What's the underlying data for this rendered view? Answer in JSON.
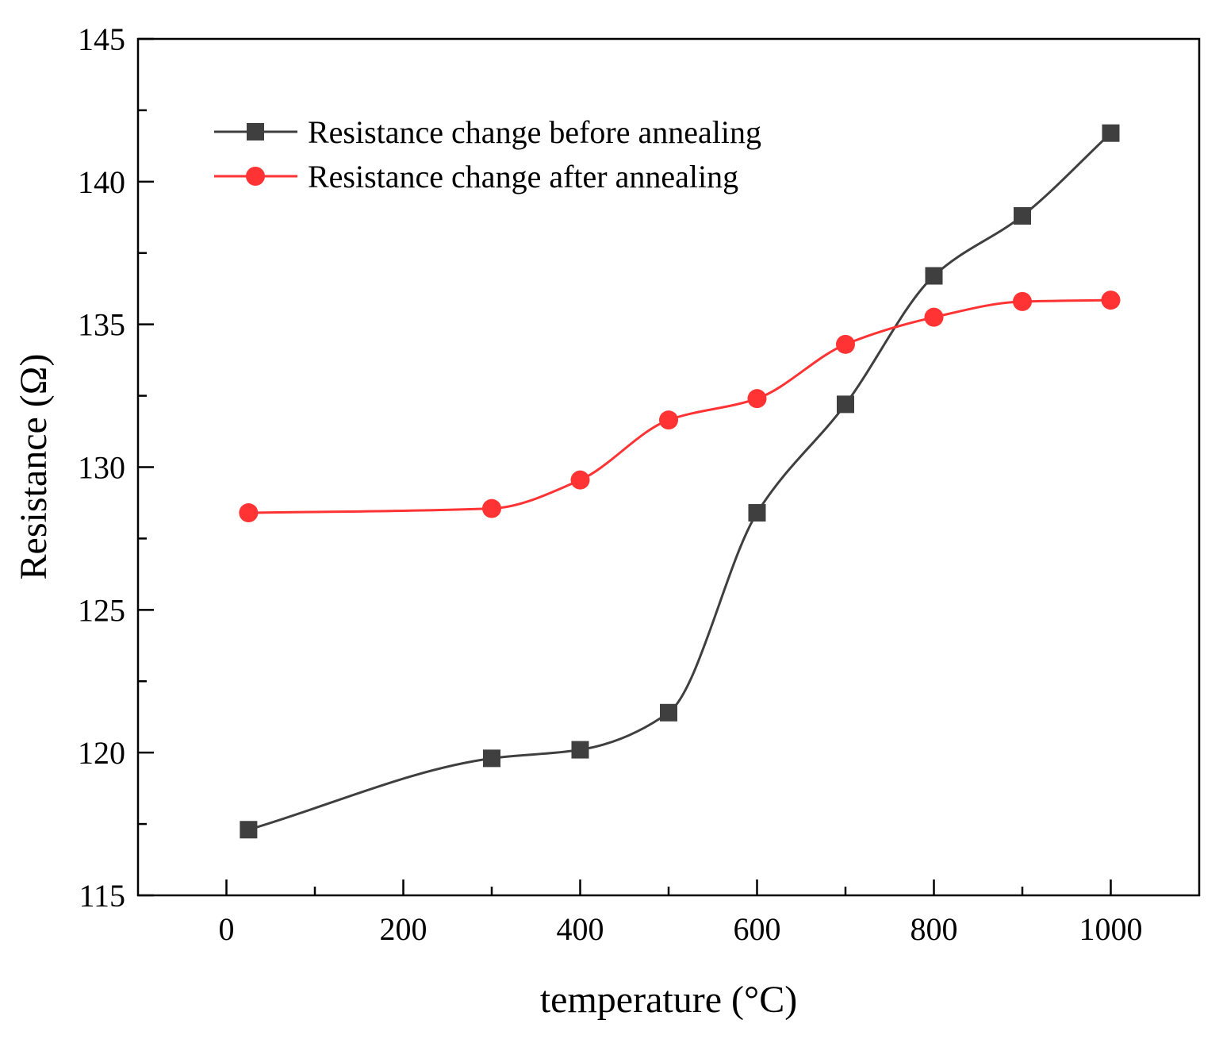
{
  "chart_data": {
    "type": "line",
    "title": "",
    "xlabel": "temperature (°C)",
    "ylabel": "Resistance (Ω)",
    "xlim": [
      -100,
      1100
    ],
    "ylim": [
      115,
      145
    ],
    "xticks": [
      0,
      200,
      400,
      600,
      800,
      1000
    ],
    "xtick_labels": [
      "0",
      "200",
      "400",
      "600",
      "800",
      "1000"
    ],
    "yticks": [
      115,
      120,
      125,
      130,
      135,
      140,
      145
    ],
    "ytick_labels": [
      "115",
      "120",
      "125",
      "130",
      "135",
      "140",
      "145"
    ],
    "grid": false,
    "legend_position": "top-left",
    "series": [
      {
        "name": "Resistance change before annealing",
        "marker": "square",
        "color": "#3f3f3f",
        "x": [
          25,
          300,
          400,
          500,
          600,
          700,
          800,
          900,
          1000
        ],
        "y": [
          117.3,
          119.8,
          120.1,
          121.4,
          128.4,
          132.2,
          136.7,
          138.8,
          141.7
        ]
      },
      {
        "name": "Resistance change after annealing",
        "marker": "circle",
        "color": "#ff3333",
        "x": [
          25,
          300,
          400,
          500,
          600,
          700,
          800,
          900,
          1000
        ],
        "y": [
          128.4,
          128.55,
          129.55,
          131.65,
          132.4,
          134.3,
          135.25,
          135.8,
          135.85
        ]
      }
    ]
  }
}
